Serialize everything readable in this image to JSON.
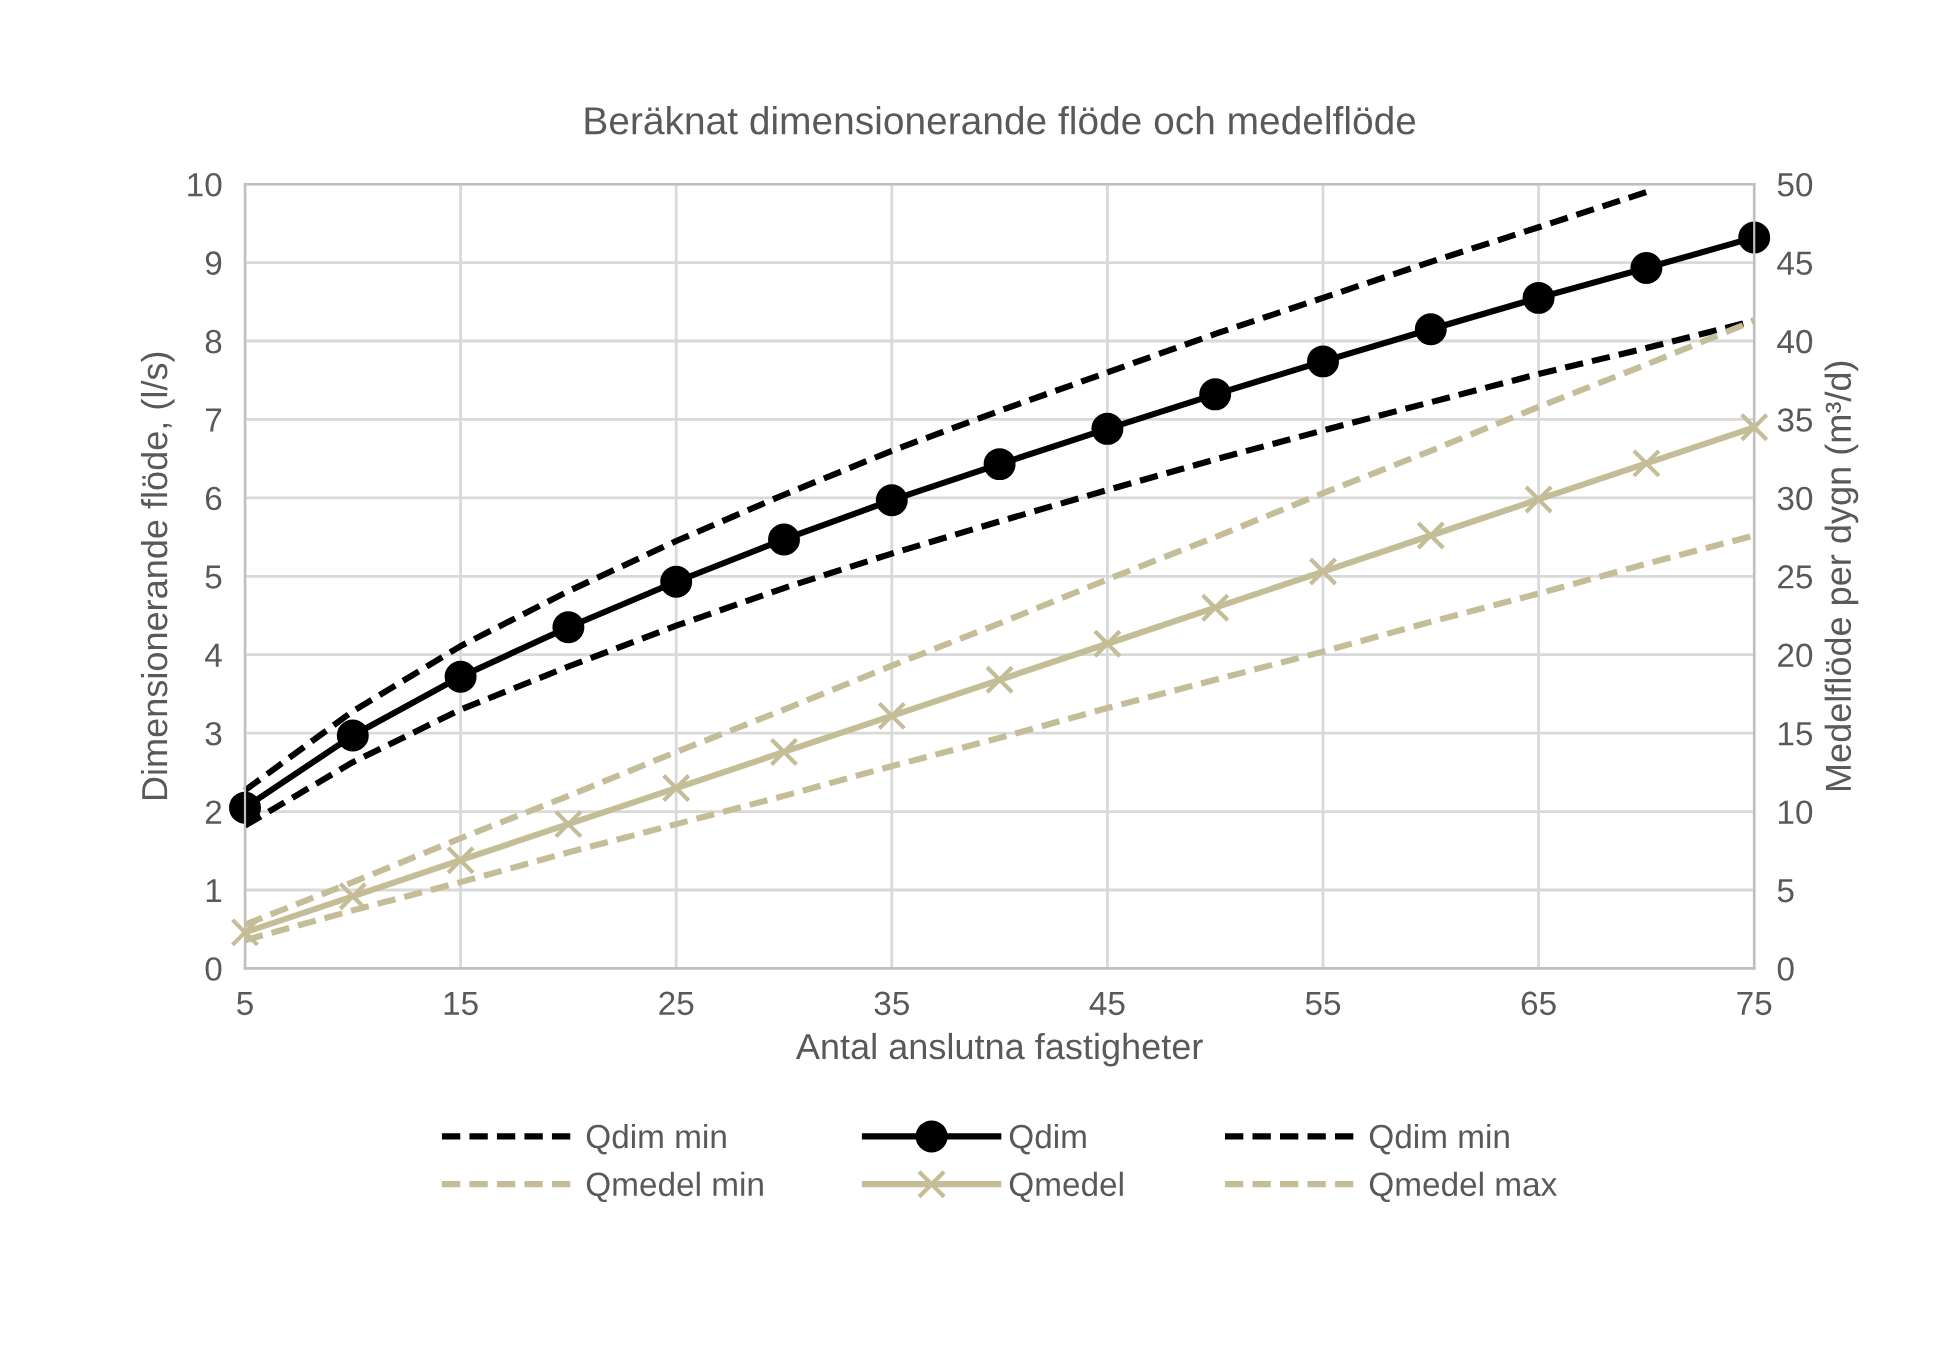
{
  "chart_data": {
    "type": "line",
    "title": "Beräknat dimensionerande flöde och medelflöde",
    "xlabel": "Antal anslutna fastigheter",
    "ylabel": "Dimensionerande flöde, (l/s)",
    "y2label": "Medelflöde per dygn (m³/d)",
    "x": [
      5,
      10,
      15,
      20,
      25,
      30,
      35,
      40,
      45,
      50,
      55,
      60,
      65,
      70,
      75
    ],
    "xlim": [
      5,
      75
    ],
    "xticks": [
      5,
      15,
      25,
      35,
      45,
      55,
      65,
      75
    ],
    "ylim": [
      0,
      10
    ],
    "yticks": [
      0,
      1,
      2,
      3,
      4,
      5,
      6,
      7,
      8,
      9,
      10
    ],
    "y2lim": [
      0,
      50
    ],
    "y2ticks": [
      0,
      5,
      10,
      15,
      20,
      25,
      30,
      35,
      40,
      45,
      50
    ],
    "grid": true,
    "legend": "bottom",
    "series": [
      {
        "name": "Qdim min",
        "color": "#000000",
        "line_style": "dashed",
        "marker": "none",
        "values": [
          2.27,
          3.28,
          4.11,
          4.81,
          5.45,
          6.04,
          6.6,
          7.11,
          7.6,
          8.09,
          8.55,
          9.01,
          9.45,
          9.9,
          null
        ]
      },
      {
        "name": "Qdim",
        "color": "#000000",
        "line_style": "solid",
        "marker": "circle",
        "values": [
          2.05,
          2.97,
          3.72,
          4.35,
          4.93,
          5.47,
          5.97,
          6.43,
          6.88,
          7.32,
          7.74,
          8.15,
          8.55,
          8.93,
          9.32
        ]
      },
      {
        "name": "Qdim min",
        "color": "#000000",
        "line_style": "dashed",
        "marker": "none",
        "values": [
          1.82,
          2.63,
          3.3,
          3.85,
          4.37,
          4.85,
          5.29,
          5.7,
          6.1,
          6.49,
          6.86,
          7.22,
          7.58,
          7.91,
          8.26
        ]
      },
      {
        "name": "Qmedel min",
        "color": "#c4bd97",
        "line_style": "dashed",
        "marker": "none",
        "axis": "y2",
        "values": [
          1.8,
          3.7,
          5.5,
          7.4,
          9.2,
          11,
          12.9,
          14.7,
          16.6,
          18.4,
          20.2,
          22.1,
          23.9,
          25.8,
          27.6
        ]
      },
      {
        "name": "Qmedel",
        "color": "#c4bd97",
        "line_style": "solid",
        "marker": "cross",
        "axis": "y2",
        "values": [
          2.3,
          4.6,
          6.9,
          9.2,
          11.5,
          13.8,
          16.1,
          18.4,
          20.7,
          23,
          25.3,
          27.6,
          29.9,
          32.2,
          34.5
        ]
      },
      {
        "name": "Qmedel max",
        "color": "#c4bd97",
        "line_style": "dashed",
        "marker": "none",
        "axis": "y2",
        "values": [
          2.8,
          5.5,
          8.3,
          11,
          13.8,
          16.5,
          19.3,
          22,
          24.8,
          27.5,
          30.3,
          33,
          35.8,
          38.5,
          41.3
        ]
      }
    ]
  }
}
